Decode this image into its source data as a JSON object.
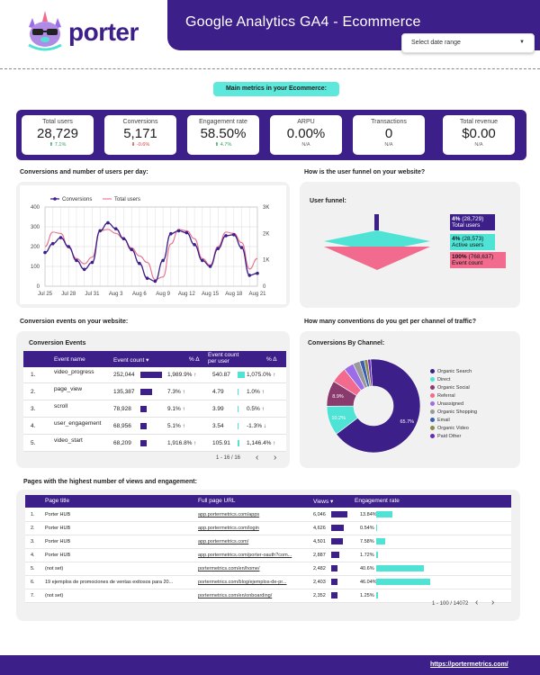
{
  "header": {
    "title": "Google Analytics GA4 - Ecommerce",
    "logo_text": "porter",
    "date_placeholder": "Select date range"
  },
  "section_pill": "Main metrics in your Ecommerce:",
  "metrics": [
    {
      "label": "Total users",
      "value": "28,729",
      "delta": "7.1%",
      "dir": "up"
    },
    {
      "label": "Conversions",
      "value": "5,171",
      "delta": "-0.6%",
      "dir": "down"
    },
    {
      "label": "Engagement rate",
      "value": "58.50%",
      "delta": "4.7%",
      "dir": "up"
    },
    {
      "label": "ARPU",
      "value": "0.00%",
      "delta": "N/A",
      "dir": "na"
    },
    {
      "label": "Transactions",
      "value": "0",
      "delta": "N/A",
      "dir": "na"
    },
    {
      "label": "Total revenue",
      "value": "$0.00",
      "delta": "N/A",
      "dir": "na"
    }
  ],
  "sections": {
    "conv_users": "Conversions and number of users per day:",
    "funnel": "How is the user funnel on your website?",
    "conv_events": "Conversion events on your website:",
    "channels": "How many conventions do you get per channel of traffic?",
    "pages": "Pages with the highest number of views and engagement:"
  },
  "chart_data": [
    {
      "type": "line",
      "title": "",
      "x": [
        "Jul 25",
        "Jul 26",
        "Jul 27",
        "Jul 28",
        "Jul 29",
        "Jul 30",
        "Jul 31",
        "Aug 1",
        "Aug 2",
        "Aug 3",
        "Aug 4",
        "Aug 5",
        "Aug 6",
        "Aug 7",
        "Aug 8",
        "Aug 9",
        "Aug 10",
        "Aug 11",
        "Aug 12",
        "Aug 13",
        "Aug 14",
        "Aug 15",
        "Aug 16",
        "Aug 17",
        "Aug 18",
        "Aug 19",
        "Aug 20",
        "Aug 21"
      ],
      "x_tick_labels": [
        "Jul 25",
        "Jul 28",
        "Jul 31",
        "Aug 3",
        "Aug 6",
        "Aug 9",
        "Aug 12",
        "Aug 15",
        "Aug 18",
        "Aug 21"
      ],
      "series": [
        {
          "name": "Conversions",
          "axis": "left",
          "color": "#3d1f8a",
          "values": [
            170,
            215,
            245,
            200,
            130,
            85,
            120,
            280,
            320,
            290,
            240,
            185,
            115,
            40,
            25,
            130,
            265,
            280,
            270,
            210,
            130,
            100,
            190,
            255,
            260,
            195,
            55,
            65
          ]
        },
        {
          "name": "Total users",
          "axis": "right",
          "color": "#e8708f",
          "values": [
            1500,
            2050,
            2000,
            1450,
            1050,
            850,
            1100,
            2100,
            2150,
            2000,
            1800,
            1450,
            1150,
            900,
            250,
            350,
            1600,
            2150,
            2100,
            1800,
            1050,
            800,
            1500,
            2050,
            2000,
            1650,
            650,
            1050
          ]
        }
      ],
      "y_left": {
        "ticks": [
          "0",
          "100",
          "200",
          "300",
          "400"
        ],
        "ylim": [
          0,
          400
        ]
      },
      "y_right": {
        "ticks": [
          "0",
          "1K",
          "2K",
          "3K"
        ],
        "ylim": [
          0,
          3000
        ]
      },
      "legend": "top-left"
    },
    {
      "type": "funnel",
      "title": "User funnel:",
      "stages": [
        {
          "label_strong": "4%",
          "label": "(28,729)",
          "sub": "Total users",
          "value": 28729,
          "color": "#3d1f8a"
        },
        {
          "label_strong": "4%",
          "label": "(28,573)",
          "sub": "Active users",
          "value": 28573,
          "color": "#4fe3d5"
        },
        {
          "label_strong": "100%",
          "label": "(768,637)",
          "sub": "Event count",
          "value": 768637,
          "color": "#f26a8d"
        }
      ]
    },
    {
      "type": "pie",
      "title": "Conversions By Channel:",
      "slices": [
        {
          "name": "Organic Search",
          "value": 65.7,
          "label": "65.7%",
          "color": "#3d1f8a"
        },
        {
          "name": "Direct",
          "value": 10.2,
          "label": "10.2%",
          "color": "#4fe3d5"
        },
        {
          "name": "Organic Social",
          "value": 8.9,
          "label": "8.9%",
          "color": "#8a3b6e"
        },
        {
          "name": "Referral",
          "value": 5.5,
          "label": "",
          "color": "#f26a8d"
        },
        {
          "name": "Unassigned",
          "value": 3.5,
          "label": "",
          "color": "#9b6ee8"
        },
        {
          "name": "Organic Shopping",
          "value": 2.4,
          "label": "",
          "color": "#9a9a9a"
        },
        {
          "name": "Email",
          "value": 1.6,
          "label": "",
          "color": "#3a5fb0"
        },
        {
          "name": "Organic Video",
          "value": 1.2,
          "label": "",
          "color": "#8a8a4a"
        },
        {
          "name": "Paid Other",
          "value": 1.0,
          "label": "",
          "color": "#6a2ab8"
        }
      ],
      "legend": "right"
    }
  ],
  "events_table": {
    "title": "Conversion Events",
    "headers": [
      "Event name",
      "Event count ▾",
      "% Δ",
      "Event count per user",
      "% Δ"
    ],
    "rows": [
      {
        "n": "1.",
        "name": "video_progress",
        "count": "252,044",
        "bar": 1.0,
        "pct": "1,989.9% ↑",
        "per_user": "540.87",
        "ubar": 1.0,
        "pct2": "1,075.0% ↑"
      },
      {
        "n": "2.",
        "name": "page_view",
        "count": "135,387",
        "bar": 0.54,
        "pct": "7.3% ↑",
        "per_user": "4.79",
        "ubar": 0.05,
        "pct2": "1.0% ↑"
      },
      {
        "n": "3.",
        "name": "scroll",
        "count": "78,928",
        "bar": 0.31,
        "pct": "9.1% ↑",
        "per_user": "3.99",
        "ubar": 0.04,
        "pct2": "0.5% ↑"
      },
      {
        "n": "4.",
        "name": "user_engagement",
        "count": "68,956",
        "bar": 0.27,
        "pct": "5.1% ↑",
        "per_user": "3.54",
        "ubar": 0.03,
        "pct2": "-1.3% ↓"
      },
      {
        "n": "5.",
        "name": "video_start",
        "count": "68,209",
        "bar": 0.27,
        "pct": "1,916.8% ↑",
        "per_user": "105.91",
        "ubar": 0.2,
        "pct2": "1,146.4% ↑"
      },
      {
        "n": "6.",
        "name": "video_complete",
        "count": "65,069",
        "bar": 0.26,
        "pct": "2,134.5% ↑",
        "per_user": "174.89",
        "ubar": 0.32,
        "pct2": "984.0% ↑"
      }
    ],
    "pager": "1 - 16 / 16"
  },
  "pages_table": {
    "headers": [
      "Page title",
      "Full page URL",
      "Views ▾",
      "Engagement rate"
    ],
    "rows": [
      {
        "n": "1.",
        "title": "Porter HUB",
        "url": "app.portermetrics.com/apps",
        "views": "6,046",
        "vbar": 1.0,
        "eng": "13.84%",
        "ebar": 0.3
      },
      {
        "n": "2.",
        "title": "Porter HUB",
        "url": "app.portermetrics.com/login",
        "views": "4,626",
        "vbar": 0.77,
        "eng": "0.54%",
        "ebar": 0.012
      },
      {
        "n": "3.",
        "title": "Porter HUB",
        "url": "app.portermetrics.com/",
        "views": "4,501",
        "vbar": 0.74,
        "eng": "7.58%",
        "ebar": 0.165
      },
      {
        "n": "4.",
        "title": "Porter HUB",
        "url": "app.portermetrics.com/porter-oauth?com...",
        "views": "2,887",
        "vbar": 0.48,
        "eng": "1.72%",
        "ebar": 0.037
      },
      {
        "n": "5.",
        "title": "(not set)",
        "url": "portermetrics.com/en/home/",
        "views": "2,482",
        "vbar": 0.41,
        "eng": "40.6%",
        "ebar": 0.88
      },
      {
        "n": "6.",
        "title": "19 ejemplos de promociones de ventas exitosos para 20...",
        "url": "portermetrics.com/blog/ejemplos-de-pr...",
        "views": "2,403",
        "vbar": 0.4,
        "eng": "46.04%",
        "ebar": 1.0
      },
      {
        "n": "7.",
        "title": "(not set)",
        "url": "portermetrics.com/en/onboarding/",
        "views": "2,352",
        "vbar": 0.39,
        "eng": "1.25%",
        "ebar": 0.027
      }
    ],
    "pager": "1 - 100 / 14072"
  },
  "footer": {
    "link": "https://portermetrics.com/"
  },
  "colors": {
    "brand": "#3d1f8a",
    "accent": "#4fe3d5",
    "pink": "#f26a8d"
  }
}
